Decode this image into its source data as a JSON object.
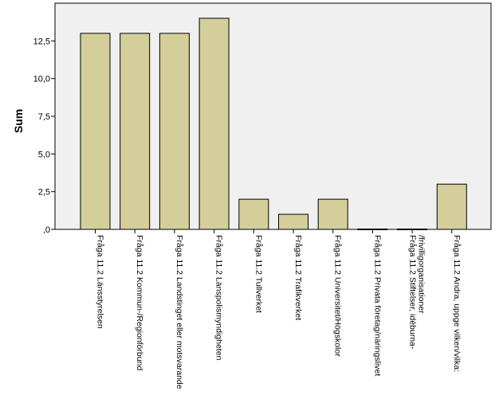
{
  "chart_data": {
    "type": "bar",
    "ylabel": "Sum",
    "xlabel": "",
    "ylim": [
      0,
      15
    ],
    "yticks": [
      {
        "value": 0,
        "label": ",0"
      },
      {
        "value": 2.5,
        "label": "2,5"
      },
      {
        "value": 5,
        "label": "5,0"
      },
      {
        "value": 7.5,
        "label": "7,5"
      },
      {
        "value": 10,
        "label": "10,0"
      },
      {
        "value": 12.5,
        "label": "12,5"
      }
    ],
    "categories": [
      [
        "Fråga 11.2 Länsstyrelsen"
      ],
      [
        "Fråga 11.2 Kommun-/Regionförbund"
      ],
      [
        "Fråga 11.2 Landstinget eller motsvarande"
      ],
      [
        "Fråga 11.2 Länspolismyndigheten"
      ],
      [
        "Fråga 11.2 Tullverket"
      ],
      [
        "Fråga 11.2 Trafikverket"
      ],
      [
        "Fråga 11.2 Universitet/Högskolor"
      ],
      [
        "Fråga 11.2 Privata företag/näringslivet"
      ],
      [
        "Fråga 11.2 Stiftelser, idéburna-",
        "/frivilligorganisationer"
      ],
      [
        "Fråga 11.2 Andra, uppge vilken/vilka:"
      ]
    ],
    "values": [
      13,
      13,
      13,
      14,
      2,
      1,
      2,
      0,
      0,
      3
    ],
    "colors": {
      "bar_fill": "#d4cf9a",
      "bar_stroke": "#000000",
      "plot_bg": "#f0f0f0",
      "axis": "#000000"
    },
    "grid": false,
    "legend": "none"
  }
}
